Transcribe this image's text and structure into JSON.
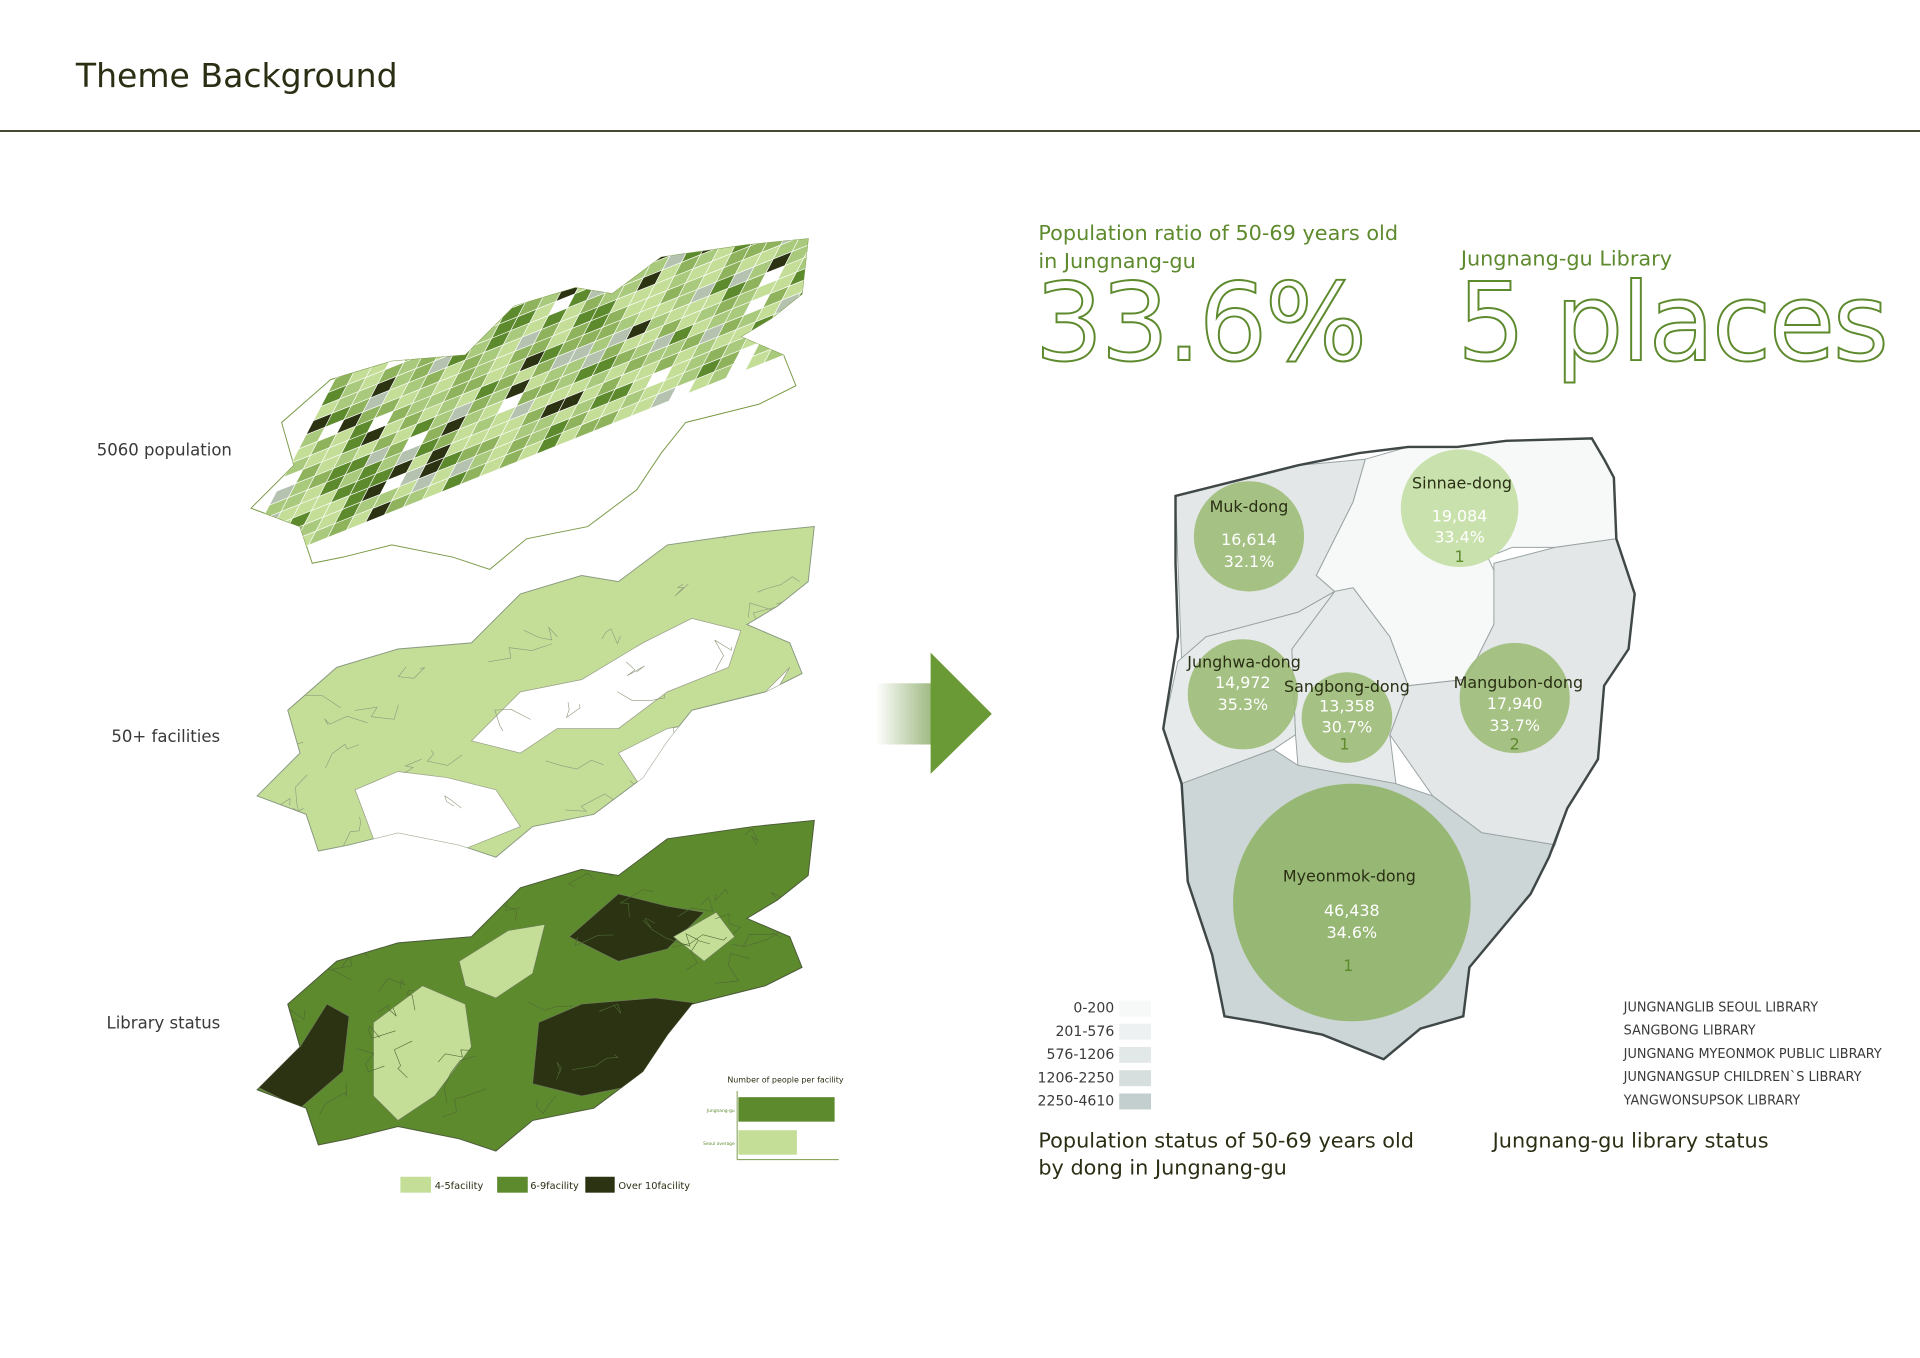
{
  "header": {
    "title": "Theme Background"
  },
  "layers": [
    {
      "label": "5060 population"
    },
    {
      "label": "50+ facilities"
    },
    {
      "label": "Library status"
    }
  ],
  "facility_legend": [
    {
      "label": "4-5facility",
      "color": "#c4de98"
    },
    {
      "label": "6-9facility",
      "color": "#5e8a2e"
    },
    {
      "label": "Over 10facility",
      "color": "#2b3312"
    }
  ],
  "chart_data": {
    "type": "bar",
    "orientation": "horizontal",
    "title": "Number of people per facility",
    "categories": [
      "Jungnang-gu",
      "Seoul average"
    ],
    "values": [
      0.97,
      0.59
    ],
    "colors": [
      "#5e8a2e",
      "#c4de98"
    ],
    "xlabel": "",
    "ylabel": ""
  },
  "stats": {
    "ratio_label_line1": "Population ratio of 50-69 years old",
    "ratio_label_line2": "in Jungnang-gu",
    "ratio_value": "33.6%",
    "library_label": "Jungnang-gu Library",
    "library_value": "5 places",
    "accent": "#5e8a2e"
  },
  "dongs": [
    {
      "name": "Muk-dong",
      "population": "16,614",
      "ratio": "32.1%",
      "libraries": ""
    },
    {
      "name": "Sinnae-dong",
      "population": "19,084",
      "ratio": "33.4%",
      "libraries": "1"
    },
    {
      "name": "Junghwa-dong",
      "population": "14,972",
      "ratio": "35.3%",
      "libraries": ""
    },
    {
      "name": "Sangbong-dong",
      "population": "13,358",
      "ratio": "30.7%",
      "libraries": "1"
    },
    {
      "name": "Mangubon-dong",
      "population": "17,940",
      "ratio": "33.7%",
      "libraries": "2"
    },
    {
      "name": "Myeonmok-dong",
      "population": "46,438",
      "ratio": "34.6%",
      "libraries": "1"
    }
  ],
  "density_legend": [
    {
      "label": "0-200",
      "color": "#f7f8f8"
    },
    {
      "label": "201-576",
      "color": "#eef1f1"
    },
    {
      "label": "576-1206",
      "color": "#e2e7e7"
    },
    {
      "label": "1206-2250",
      "color": "#d6dede"
    },
    {
      "label": "2250-4610",
      "color": "#c3cfcf"
    }
  ],
  "libraries": [
    "JUNGNANGLIB SEOUL LIBRARY",
    "SANGBONG LIBRARY",
    "JUNGNANG MYEONMOK PUBLIC LIBRARY",
    "JUNGNANGSUP CHILDREN`S LIBRARY",
    "YANGWONSUPSOK LIBRARY"
  ],
  "captions": {
    "population_line1": "Population status of 50-69 years old",
    "population_line2": "by dong in Jungnang-gu",
    "library": "Jungnang-gu library status"
  }
}
